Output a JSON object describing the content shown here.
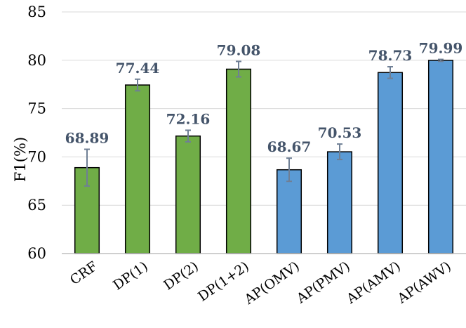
{
  "chart_data": {
    "type": "bar",
    "title": "",
    "xlabel": "",
    "ylabel": "F1(%)",
    "ylim": [
      60,
      85
    ],
    "yticks": [
      60,
      65,
      70,
      75,
      80,
      85
    ],
    "grid": true,
    "legend": "none",
    "categories": [
      "CRF",
      "DP(1)",
      "DP(2)",
      "DP(1+2)",
      "AP(OMV)",
      "AP(PMV)",
      "AP(AMV)",
      "AP(AWV)"
    ],
    "values": [
      68.89,
      77.44,
      72.16,
      79.08,
      68.67,
      70.53,
      78.73,
      79.99
    ],
    "errors": [
      1.9,
      0.6,
      0.6,
      0.8,
      1.2,
      0.8,
      0.6,
      0.1
    ],
    "data_labels": [
      "68.89",
      "77.44",
      "72.16",
      "79.08",
      "68.67",
      "70.53",
      "78.73",
      "79.99"
    ],
    "bar_colors": [
      "#70ad47",
      "#70ad47",
      "#70ad47",
      "#70ad47",
      "#5b9bd5",
      "#5b9bd5",
      "#5b9bd5",
      "#5b9bd5"
    ],
    "error_bar_color": "#6f7f95",
    "data_label_color": "#44546a"
  }
}
